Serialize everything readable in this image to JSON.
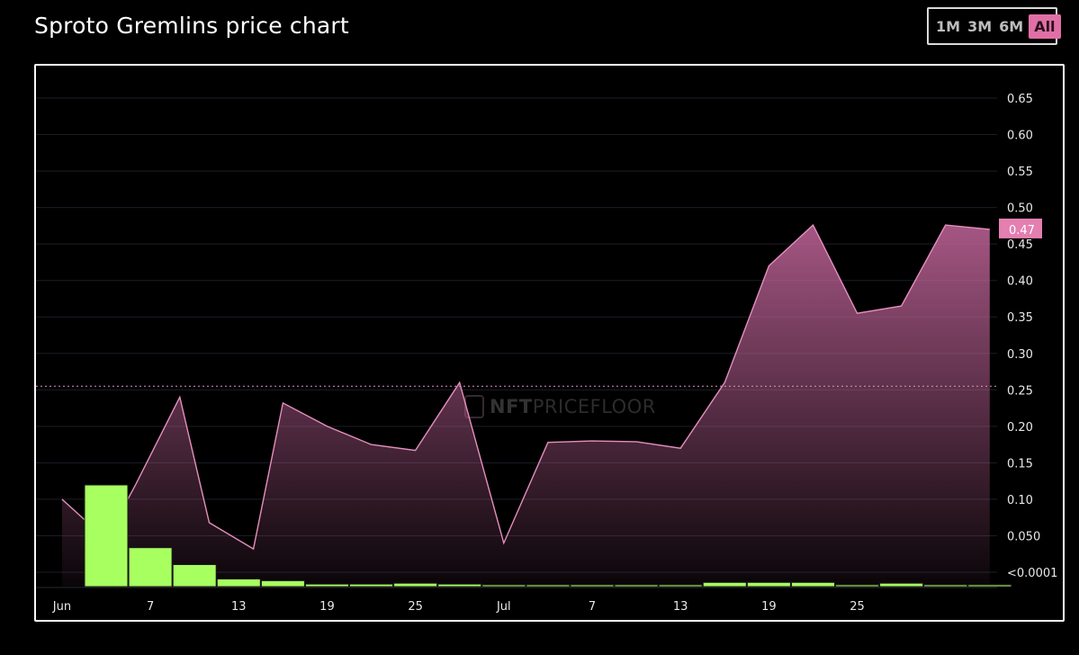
{
  "header": {
    "title": "Sproto Gremlins price chart"
  },
  "range_buttons": [
    {
      "label": "1M",
      "active": false
    },
    {
      "label": "3M",
      "active": false
    },
    {
      "label": "6M",
      "active": false
    },
    {
      "label": "All",
      "active": true
    }
  ],
  "watermark": {
    "brand_bold": "NFT",
    "brand_light": "PRICEFLOOR"
  },
  "colors": {
    "line": "#e58fbe",
    "area": "#c2659a",
    "volume": "#a8ff60",
    "price_tag": "#e47fb0",
    "grid": "#1c1c28"
  },
  "chart_data": {
    "type": "area",
    "y_ticks": [
      "0.65",
      "0.60",
      "0.55",
      "0.50",
      "0.45",
      "0.40",
      "0.35",
      "0.30",
      "0.25",
      "0.20",
      "0.15",
      "0.10",
      "0.050",
      "<0.0001"
    ],
    "y_tick_values": [
      0.65,
      0.6,
      0.55,
      0.5,
      0.45,
      0.4,
      0.35,
      0.3,
      0.25,
      0.2,
      0.15,
      0.1,
      0.05,
      0
    ],
    "ylim": [
      0,
      0.65
    ],
    "x_ticks": [
      {
        "label": "Jun",
        "day": 0
      },
      {
        "label": "7",
        "day": 6
      },
      {
        "label": "13",
        "day": 12
      },
      {
        "label": "19",
        "day": 18
      },
      {
        "label": "25",
        "day": 24
      },
      {
        "label": "Jul",
        "day": 30
      },
      {
        "label": "7",
        "day": 36
      },
      {
        "label": "13",
        "day": 42
      },
      {
        "label": "19",
        "day": 48
      },
      {
        "label": "25",
        "day": 54
      }
    ],
    "price": {
      "day": [
        0,
        3,
        5,
        8,
        10,
        13,
        15,
        18,
        21,
        24,
        27,
        30,
        33,
        36,
        39,
        42,
        45,
        48,
        51,
        54,
        57,
        60,
        63
      ],
      "value": [
        0.1,
        0.045,
        0.12,
        0.24,
        0.068,
        0.032,
        0.232,
        0.2,
        0.175,
        0.167,
        0.26,
        0.04,
        0.178,
        0.18,
        0.179,
        0.17,
        0.26,
        0.42,
        0.476,
        0.355,
        0.365,
        0.476,
        0.47
      ]
    },
    "volume": {
      "day": [
        3,
        6,
        9,
        12,
        15,
        18,
        21,
        24,
        27,
        30,
        33,
        36,
        39,
        42,
        45,
        48,
        51,
        54,
        57,
        60,
        63
      ],
      "value": [
        0.12,
        0.046,
        0.026,
        0.009,
        0.007,
        0.003,
        0.003,
        0.004,
        0.003,
        0.001,
        0.001,
        0.002,
        0.0005,
        0.001,
        0.005,
        0.005,
        0.005,
        0.0015,
        0.004,
        0.001,
        0.001
      ]
    },
    "reference_line": 0.255,
    "last_price_label": "0.47",
    "last_price": 0.47
  }
}
